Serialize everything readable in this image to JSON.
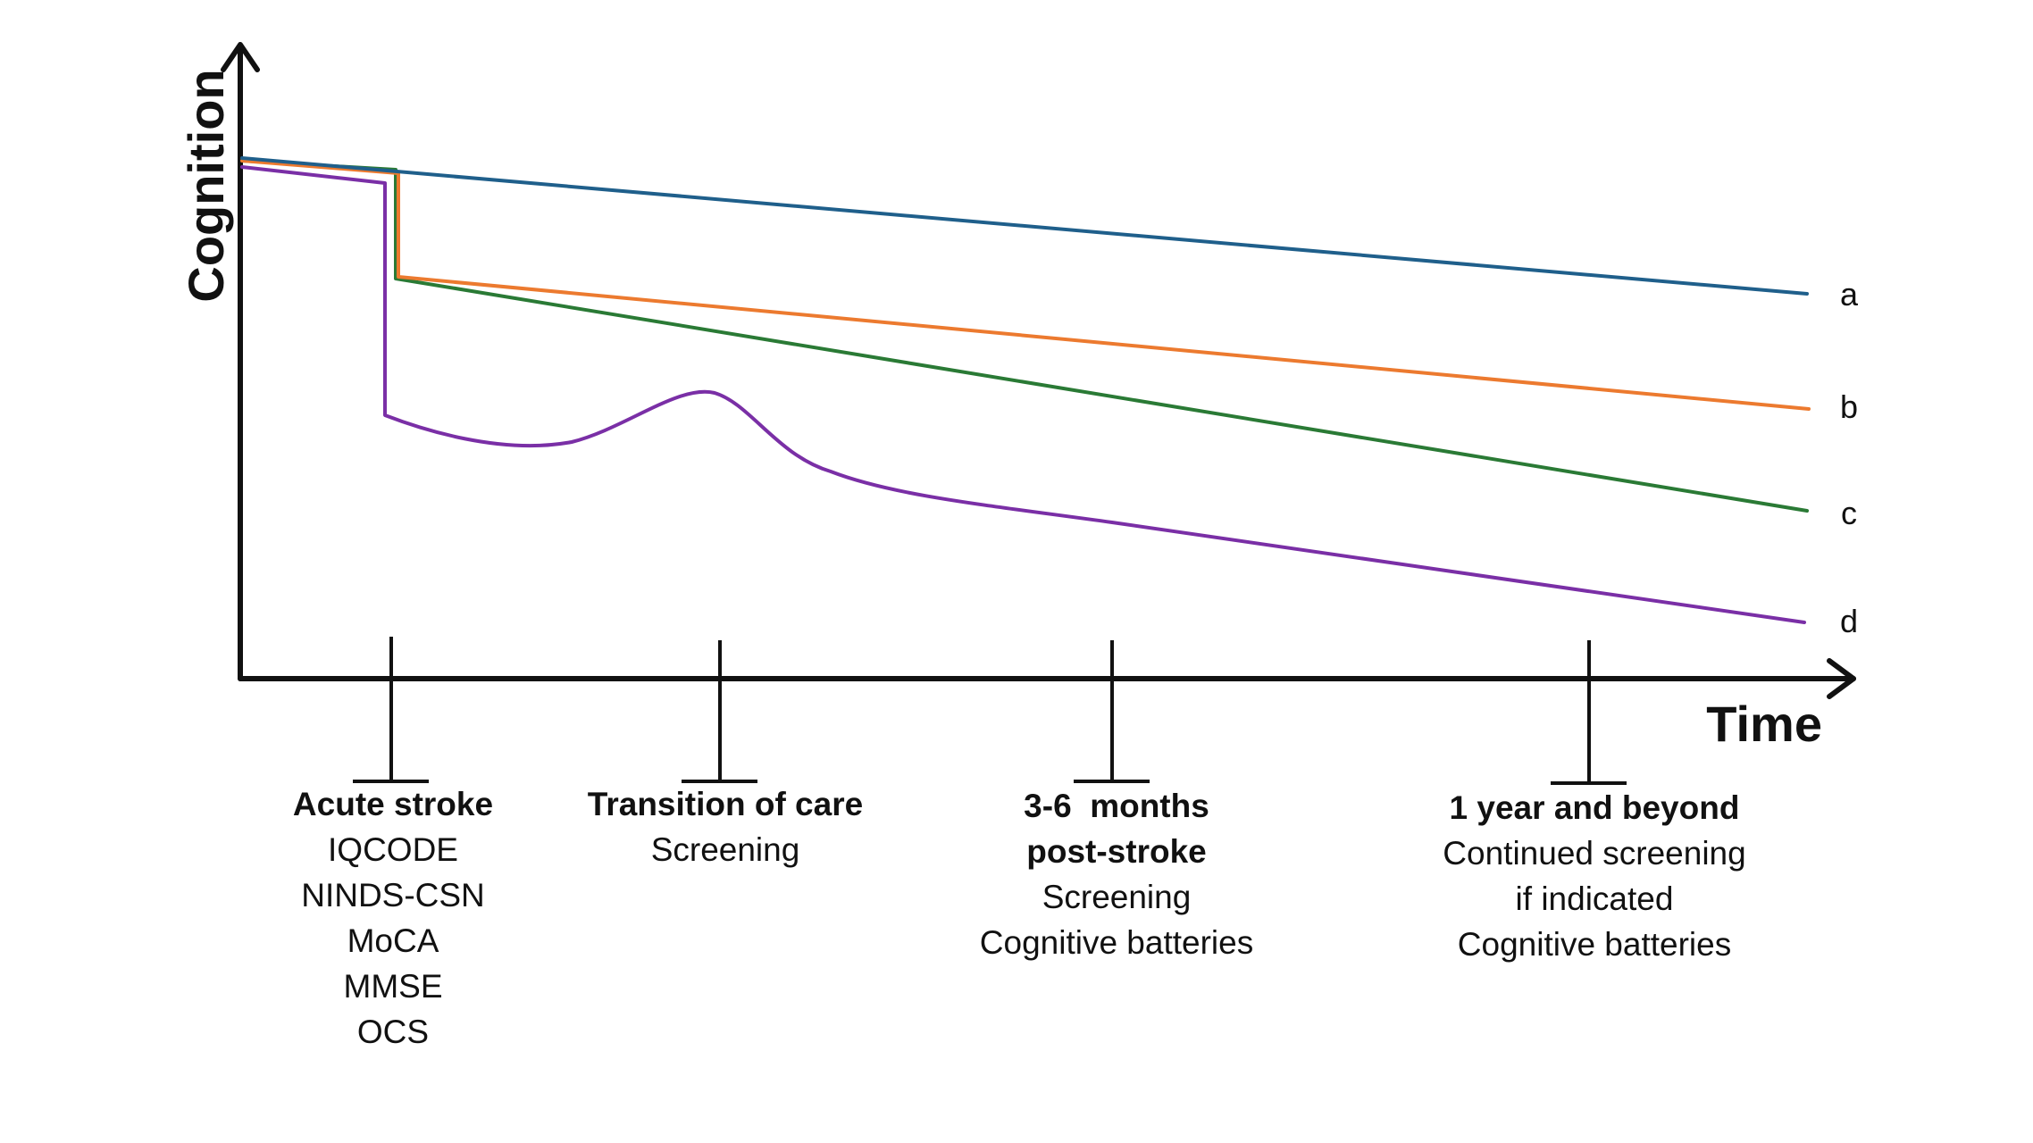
{
  "axes": {
    "y_label": "Cognition",
    "x_label": "Time"
  },
  "curves": [
    {
      "id": "a",
      "label": "a",
      "color": "#1f5f8b"
    },
    {
      "id": "b",
      "label": "b",
      "color": "#ec7a2f"
    },
    {
      "id": "c",
      "label": "c",
      "color": "#2a7a35"
    },
    {
      "id": "d",
      "label": "d",
      "color": "#7a2fa6"
    }
  ],
  "stages": [
    {
      "title_lines": [
        "Acute stroke"
      ],
      "items": [
        "IQCODE",
        "NINDS-CSN",
        "MoCA",
        "MMSE",
        "OCS"
      ]
    },
    {
      "title_lines": [
        "Transition of care"
      ],
      "items": [
        "Screening"
      ]
    },
    {
      "title_lines": [
        "3-6  months",
        "post-stroke"
      ],
      "items": [
        "Screening",
        "Cognitive batteries"
      ]
    },
    {
      "title_lines": [
        "1 year and beyond"
      ],
      "items": [
        "Continued screening",
        "if indicated",
        "Cognitive batteries"
      ]
    }
  ]
}
